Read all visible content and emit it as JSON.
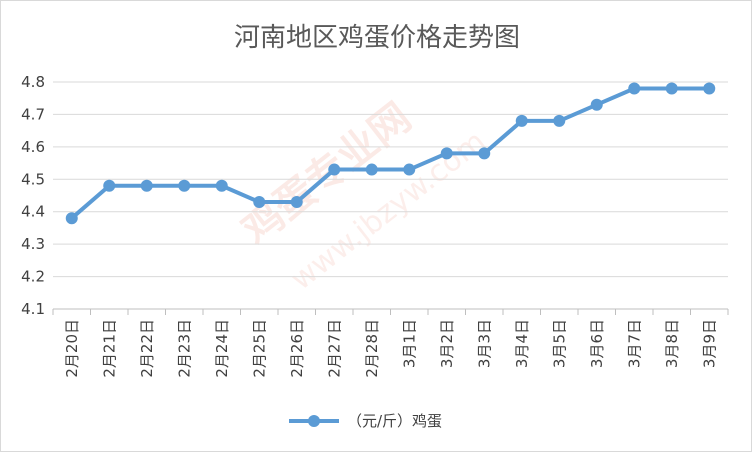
{
  "chart_data": {
    "type": "line",
    "title": "河南地区鸡蛋价格走势图",
    "categories": [
      "2月20日",
      "2月21日",
      "2月22日",
      "2月23日",
      "2月24日",
      "2月25日",
      "2月26日",
      "2月27日",
      "2月28日",
      "3月1日",
      "3月2日",
      "3月3日",
      "3月4日",
      "3月5日",
      "3月6日",
      "3月7日",
      "3月8日",
      "3月9日"
    ],
    "series": [
      {
        "name": "（元/斤）鸡蛋",
        "color": "#5b9bd5",
        "values": [
          4.38,
          4.48,
          4.48,
          4.48,
          4.48,
          4.43,
          4.43,
          4.53,
          4.53,
          4.53,
          4.58,
          4.58,
          4.68,
          4.68,
          4.73,
          4.78,
          4.78,
          4.78
        ]
      }
    ],
    "ylim": [
      4.1,
      4.8
    ],
    "yticks": [
      "4.1",
      "4.2",
      "4.3",
      "4.4",
      "4.5",
      "4.6",
      "4.7",
      "4.8"
    ],
    "grid": true,
    "legend_position": "bottom",
    "watermark_cn": "鸡蛋专业网",
    "watermark_url": "www.jbzyw.com"
  }
}
